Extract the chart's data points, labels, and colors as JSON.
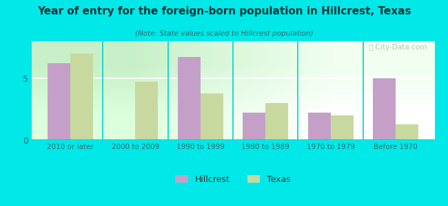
{
  "title": "Year of entry for the foreign-born population in Hillcrest, Texas",
  "subtitle": "(Note: State values scaled to Hillcrest population)",
  "categories": [
    "2010 or later",
    "2000 to 2009",
    "1990 to 1999",
    "1980 to 1989",
    "1970 to 1979",
    "Before 1970"
  ],
  "hillcrest_values": [
    6.2,
    0.0,
    6.7,
    2.2,
    2.2,
    5.0
  ],
  "texas_values": [
    7.0,
    4.7,
    3.8,
    3.0,
    2.0,
    1.3
  ],
  "hillcrest_color": "#c4a0c8",
  "texas_color": "#c8d9a0",
  "background_outer": "#00e8e8",
  "ylim": [
    0,
    8
  ],
  "yticks": [
    0,
    5
  ],
  "bar_width": 0.35,
  "legend_labels": [
    "Hillcrest",
    "Texas"
  ],
  "watermark": "Ⓢ City-Data.com"
}
